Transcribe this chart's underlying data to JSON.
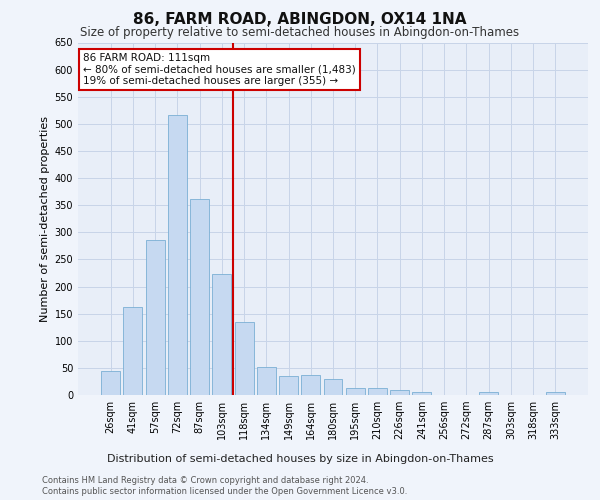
{
  "title": "86, FARM ROAD, ABINGDON, OX14 1NA",
  "subtitle": "Size of property relative to semi-detached houses in Abingdon-on-Thames",
  "xlabel_dist": "Distribution of semi-detached houses by size in Abingdon-on-Thames",
  "ylabel": "Number of semi-detached properties",
  "categories": [
    "26sqm",
    "41sqm",
    "57sqm",
    "72sqm",
    "87sqm",
    "103sqm",
    "118sqm",
    "134sqm",
    "149sqm",
    "164sqm",
    "180sqm",
    "195sqm",
    "210sqm",
    "226sqm",
    "241sqm",
    "256sqm",
    "272sqm",
    "287sqm",
    "303sqm",
    "318sqm",
    "333sqm"
  ],
  "values": [
    45,
    163,
    285,
    517,
    362,
    223,
    135,
    52,
    35,
    36,
    29,
    12,
    12,
    10,
    5,
    0,
    0,
    6,
    0,
    0,
    6
  ],
  "bar_color": "#c6d9f1",
  "bar_edge_color": "#7bafd4",
  "grid_color": "#c8d4e8",
  "bg_color": "#e8eef8",
  "vline_x": 5.5,
  "vline_color": "#cc0000",
  "annotation_text": "86 FARM ROAD: 111sqm\n← 80% of semi-detached houses are smaller (1,483)\n19% of semi-detached houses are larger (355) →",
  "annotation_box_color": "#ffffff",
  "annotation_box_edge": "#cc0000",
  "ylim": [
    0,
    650
  ],
  "yticks": [
    0,
    50,
    100,
    150,
    200,
    250,
    300,
    350,
    400,
    450,
    500,
    550,
    600,
    650
  ],
  "footnote1": "Contains HM Land Registry data © Crown copyright and database right 2024.",
  "footnote2": "Contains public sector information licensed under the Open Government Licence v3.0.",
  "title_fontsize": 11,
  "subtitle_fontsize": 8.5,
  "tick_fontsize": 7,
  "ylabel_fontsize": 8,
  "ann_fontsize": 7.5,
  "xlabel_fontsize": 8
}
